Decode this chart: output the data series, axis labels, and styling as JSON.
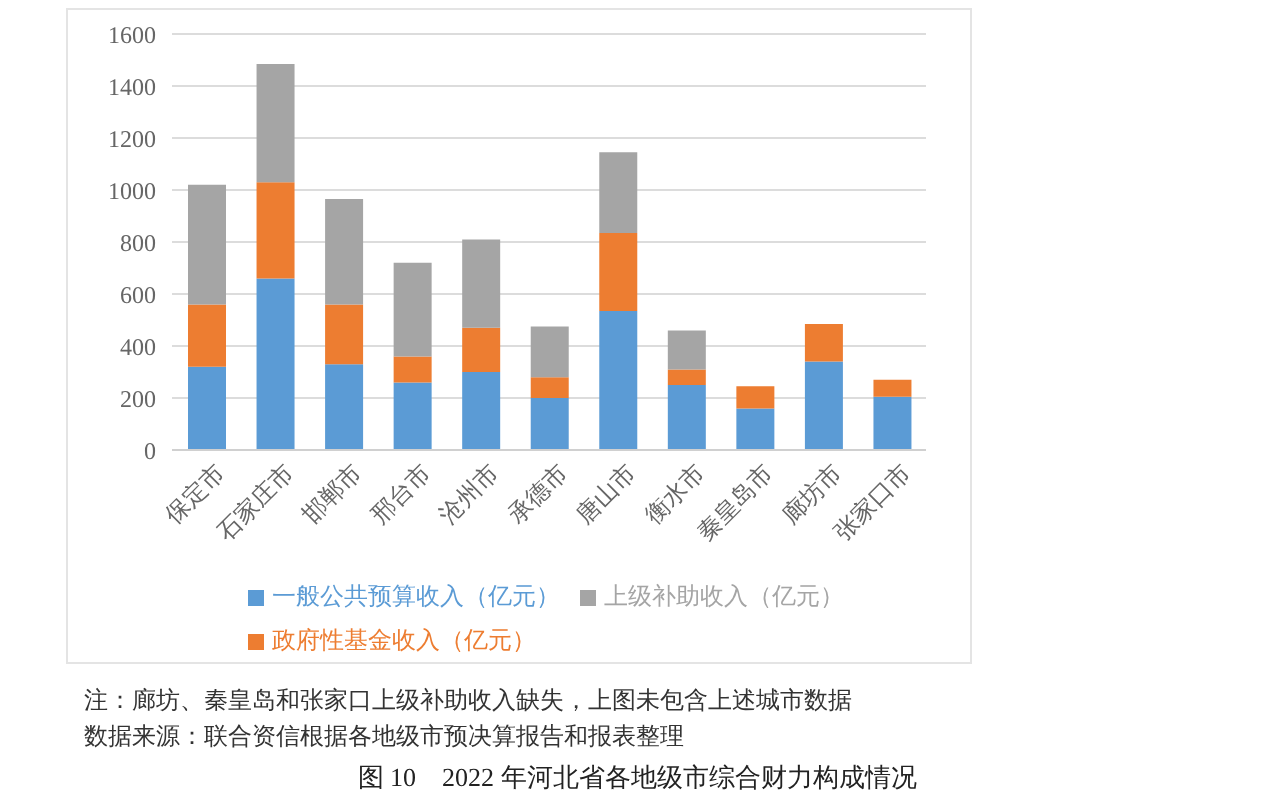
{
  "chart_data": {
    "type": "bar",
    "title": "图 10    2022 年河北省各地级市综合财力构成情况",
    "categories": [
      "保定市",
      "石家庄市",
      "邯郸市",
      "邢台市",
      "沧州市",
      "承德市",
      "唐山市",
      "衡水市",
      "秦皇岛市",
      "廊坊市",
      "张家口市"
    ],
    "series": [
      {
        "name": "一般公共预算收入（亿元）",
        "color": "#5b9bd5",
        "values": [
          320,
          660,
          330,
          260,
          300,
          200,
          535,
          250,
          160,
          340,
          205
        ]
      },
      {
        "name": "政府性基金收入（亿元）",
        "color": "#ed7d31",
        "values": [
          240,
          370,
          230,
          100,
          170,
          80,
          300,
          60,
          85,
          145,
          65
        ]
      },
      {
        "name": "上级补助收入（亿元）",
        "color": "#a5a5a5",
        "values": [
          460,
          455,
          405,
          360,
          340,
          195,
          310,
          150,
          null,
          null,
          null
        ]
      }
    ],
    "stacked": true,
    "ylim": [
      0,
      1600
    ],
    "yticks": [
      0,
      200,
      400,
      600,
      800,
      1000,
      1200,
      1400,
      1600
    ],
    "grid": "y",
    "legend": "bottom",
    "annotations": [
      "注：廊坊、秦皇岛和张家口上级补助收入缺失，上图未包含上述城市数据",
      "数据来源：联合资信根据各地级市预决算报告和报表整理"
    ]
  }
}
